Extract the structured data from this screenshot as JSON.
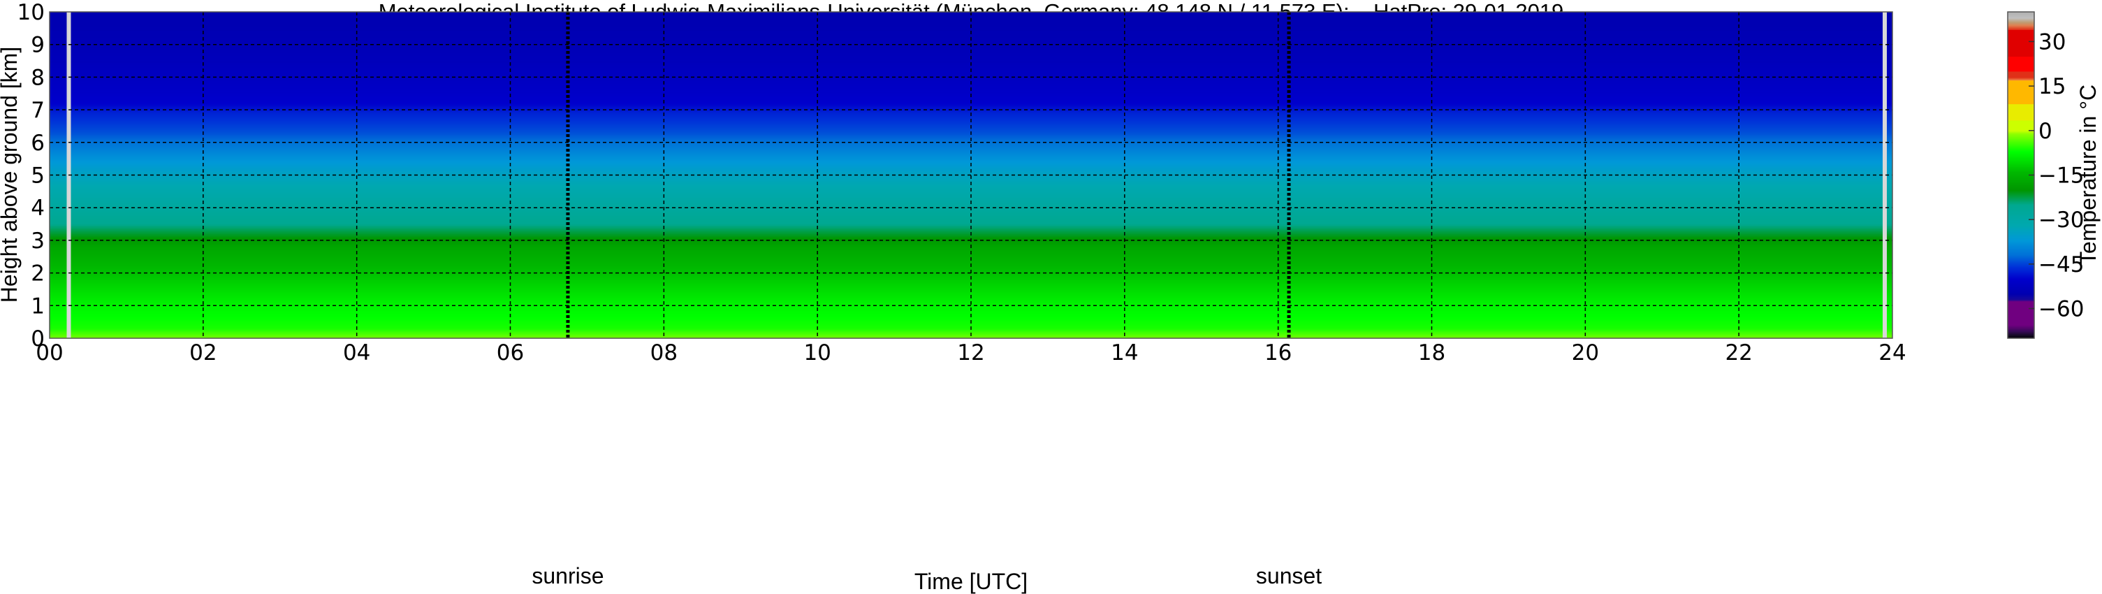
{
  "chart_data": {
    "type": "heatmap",
    "title": "Meteorological Institute of Ludwig-Maximilians-Universität (München, Germany; 48.148 N / 11.573 E):    HatPro: 29-01-2019",
    "xlabel": "Time [UTC]",
    "ylabel": "Height above ground [km]",
    "xlim": [
      0,
      24
    ],
    "ylim": [
      0,
      10
    ],
    "x_ticks": [
      "00",
      "02",
      "04",
      "06",
      "08",
      "10",
      "12",
      "14",
      "16",
      "18",
      "20",
      "22",
      "24"
    ],
    "y_ticks": [
      "0",
      "1",
      "2",
      "3",
      "4",
      "5",
      "6",
      "7",
      "8",
      "9",
      "10"
    ],
    "grid": true,
    "annotations": [
      {
        "label": "sunrise",
        "time": 6.75
      },
      {
        "label": "sunset",
        "time": 16.14
      }
    ],
    "missing_data_times": [
      0.25,
      23.9
    ],
    "profile": {
      "height_km": [
        0,
        0.3,
        1,
        2,
        2.8,
        3.5,
        4,
        5,
        5.8,
        6.3,
        6.9,
        7.2,
        8,
        9,
        10
      ],
      "temperature_c": [
        -2,
        -6,
        -8,
        -13,
        -17,
        -25,
        -28,
        -34,
        -40,
        -44,
        -47,
        -50,
        -52,
        -54,
        -55
      ]
    },
    "colorbar": {
      "label": "Temperature in °C",
      "range": [
        -70,
        40
      ],
      "ticks": [
        "30",
        "15",
        "0",
        "−15",
        "−30",
        "−45",
        "−60"
      ],
      "tick_values": [
        30,
        15,
        0,
        -15,
        -30,
        -45,
        -60
      ],
      "stops": [
        {
          "v": -70,
          "c": "#000000"
        },
        {
          "v": -69,
          "c": "#150a25"
        },
        {
          "v": -67.5,
          "c": "#3a0a5a"
        },
        {
          "v": -65.5,
          "c": "#700080"
        },
        {
          "v": -57.5,
          "c": "#700080"
        },
        {
          "v": -57,
          "c": "#1a0a9a"
        },
        {
          "v": -55,
          "c": "#0000b0"
        },
        {
          "v": -50,
          "c": "#0000cc"
        },
        {
          "v": -46,
          "c": "#0030d8"
        },
        {
          "v": -42,
          "c": "#0070d8"
        },
        {
          "v": -37,
          "c": "#0098d8"
        },
        {
          "v": -32,
          "c": "#00a8b0"
        },
        {
          "v": -25,
          "c": "#00a890"
        },
        {
          "v": -20,
          "c": "#009600"
        },
        {
          "v": -14,
          "c": "#00b800"
        },
        {
          "v": -7,
          "c": "#00ff00"
        },
        {
          "v": -1,
          "c": "#90ff00"
        },
        {
          "v": 0,
          "c": "#ccff00"
        },
        {
          "v": 3.5,
          "c": "#ccff00"
        },
        {
          "v": 3.6,
          "c": "#e8ec00"
        },
        {
          "v": 9,
          "c": "#e8ec00"
        },
        {
          "v": 9.1,
          "c": "#ffb800"
        },
        {
          "v": 17,
          "c": "#ffb800"
        },
        {
          "v": 17.1,
          "c": "#f08040"
        },
        {
          "v": 18,
          "c": "#e03018"
        },
        {
          "v": 20,
          "c": "#e03018"
        },
        {
          "v": 20.1,
          "c": "#ff0000"
        },
        {
          "v": 25,
          "c": "#ff0000"
        },
        {
          "v": 25.1,
          "c": "#e00000"
        },
        {
          "v": 34,
          "c": "#e00000"
        },
        {
          "v": 34.1,
          "c": "#e03018"
        },
        {
          "v": 35.5,
          "c": "#e08050"
        },
        {
          "v": 36.5,
          "c": "#c09a70"
        },
        {
          "v": 38,
          "c": "#c0c0c0"
        },
        {
          "v": 40,
          "c": "#b0b0b0"
        }
      ]
    }
  }
}
